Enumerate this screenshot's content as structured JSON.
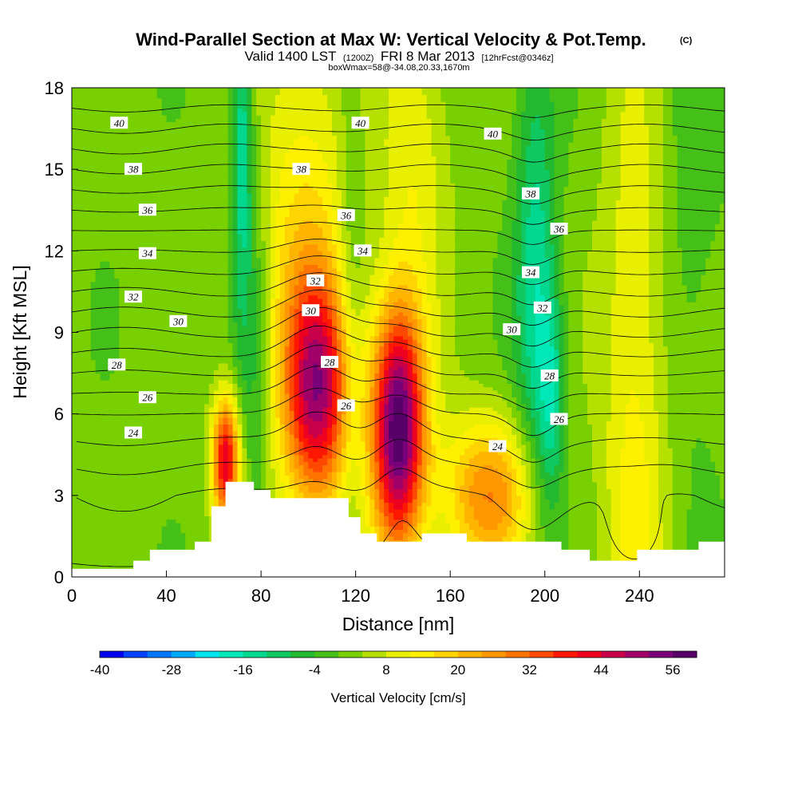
{
  "header": {
    "title": "Wind-Parallel Section at Max W: Vertical Velocity & Pot.Temp.",
    "copyright": "(C)",
    "valid_main": "Valid 1400 LST",
    "valid_utc": "(1200Z)",
    "valid_date": "FRI 8 Mar 2013",
    "forecast": "[12hrFcst@0346z]",
    "box_info": "boxWmax=58@-34.08,20.33,1670m"
  },
  "chart_data": {
    "type": "heatmap",
    "title": "Wind-Parallel Section at Max W: Vertical Velocity & Pot.Temp.",
    "xlabel": "Distance [nm]",
    "ylabel": "Height [Kft MSL]",
    "xlim": [
      0,
      276
    ],
    "ylim": [
      0,
      18
    ],
    "x_ticks": [
      0,
      40,
      80,
      120,
      160,
      200,
      240
    ],
    "y_ticks": [
      0,
      3,
      6,
      9,
      12,
      15,
      18
    ],
    "colorbar": {
      "label": "Vertical Velocity [cm/s]",
      "range": [
        -40,
        60
      ],
      "step": 4,
      "tick_values": [
        -40,
        -28,
        -16,
        -4,
        8,
        20,
        32,
        44,
        56
      ],
      "colors": [
        "#0000ee",
        "#0044ff",
        "#0077ff",
        "#00aaff",
        "#00e5f0",
        "#00e8b8",
        "#00d890",
        "#10c860",
        "#22b830",
        "#45c018",
        "#78d000",
        "#b5e000",
        "#e8f000",
        "#fff000",
        "#ffd400",
        "#ffb400",
        "#ff9800",
        "#ff7400",
        "#ff4800",
        "#ff1800",
        "#ee0020",
        "#c8004a",
        "#a00068",
        "#780078",
        "#580068"
      ]
    },
    "velocity_anomalies": [
      {
        "x": 138,
        "z": 5.5,
        "w": 58,
        "sx": 8,
        "sz": 3.2
      },
      {
        "x": 104,
        "z": 6.8,
        "w": 42,
        "sx": 10,
        "sz": 3.0
      },
      {
        "x": 65,
        "z": 4.3,
        "w": 42,
        "sx": 4,
        "sz": 1.6
      },
      {
        "x": 176,
        "z": 3.0,
        "w": 26,
        "sx": 14,
        "sz": 2.0
      },
      {
        "x": 238,
        "z": 5.5,
        "w": 12,
        "sx": 10,
        "sz": 10
      },
      {
        "x": 98,
        "z": 12.5,
        "w": 14,
        "sx": 14,
        "sz": 6
      },
      {
        "x": 145,
        "z": 15.5,
        "w": 10,
        "sx": 10,
        "sz": 4
      },
      {
        "x": 196,
        "z": 11,
        "w": -16,
        "sx": 6,
        "sz": 6
      },
      {
        "x": 203,
        "z": 6.5,
        "w": -14,
        "sx": 4,
        "sz": 3
      },
      {
        "x": 72,
        "z": 16,
        "w": -18,
        "sx": 3,
        "sz": 5
      },
      {
        "x": 118,
        "z": 10,
        "w": -6,
        "sx": 4,
        "sz": 8
      },
      {
        "x": 78,
        "z": 8,
        "w": -8,
        "sx": 4,
        "sz": 5
      },
      {
        "x": 262,
        "z": 14,
        "w": -4,
        "sx": 10,
        "sz": 8
      }
    ],
    "terrain": [
      [
        0,
        0.3
      ],
      [
        26,
        0.3
      ],
      [
        26,
        0.6
      ],
      [
        33,
        0.6
      ],
      [
        33,
        1.0
      ],
      [
        52,
        1.0
      ],
      [
        52,
        1.3
      ],
      [
        59,
        1.3
      ],
      [
        59,
        2.6
      ],
      [
        65,
        2.6
      ],
      [
        65,
        3.5
      ],
      [
        77,
        3.5
      ],
      [
        77,
        3.2
      ],
      [
        84,
        3.2
      ],
      [
        84,
        2.9
      ],
      [
        117,
        2.9
      ],
      [
        117,
        2.2
      ],
      [
        122,
        2.2
      ],
      [
        122,
        1.6
      ],
      [
        129,
        1.6
      ],
      [
        129,
        1.3
      ],
      [
        148,
        1.3
      ],
      [
        148,
        1.6
      ],
      [
        167,
        1.6
      ],
      [
        167,
        1.3
      ],
      [
        207,
        1.3
      ],
      [
        207,
        1.0
      ],
      [
        219,
        1.0
      ],
      [
        219,
        0.6
      ],
      [
        239,
        0.6
      ],
      [
        239,
        1.0
      ],
      [
        265,
        1.0
      ],
      [
        265,
        1.3
      ],
      [
        277,
        1.3
      ]
    ],
    "theta_contours": {
      "units": "C",
      "levels": [
        21,
        22,
        23,
        24,
        25,
        26,
        27,
        28,
        29,
        30,
        31,
        32,
        33,
        34,
        35,
        36,
        37,
        38,
        39,
        40,
        41
      ],
      "base": [
        [
          0,
          21.8
        ],
        [
          3,
          23.0
        ],
        [
          6,
          26.0
        ],
        [
          9,
          30.0
        ],
        [
          12,
          34.0
        ],
        [
          15,
          38.0
        ],
        [
          18,
          42.0
        ]
      ],
      "perturbations": [
        {
          "x": 104,
          "z": 7.5,
          "amp": -1.2,
          "sx": 12,
          "sz": 4
        },
        {
          "x": 138,
          "z": 5.5,
          "amp": -1.0,
          "sx": 9,
          "sz": 3
        },
        {
          "x": 195,
          "z": 9,
          "amp": 0.9,
          "sx": 8,
          "sz": 5
        },
        {
          "x": 238,
          "z": 1.5,
          "amp": 1.3,
          "sx": 9,
          "sz": 1.2
        }
      ],
      "labels": [
        {
          "text": "40",
          "x": 20,
          "z": 16.7
        },
        {
          "text": "40",
          "x": 122,
          "z": 16.7
        },
        {
          "text": "40",
          "x": 178,
          "z": 16.3
        },
        {
          "text": "38",
          "x": 26,
          "z": 15.0
        },
        {
          "text": "38",
          "x": 97,
          "z": 15.0
        },
        {
          "text": "38",
          "x": 194,
          "z": 14.1
        },
        {
          "text": "36",
          "x": 32,
          "z": 13.5
        },
        {
          "text": "36",
          "x": 116,
          "z": 13.3
        },
        {
          "text": "36",
          "x": 206,
          "z": 12.8
        },
        {
          "text": "34",
          "x": 32,
          "z": 11.9
        },
        {
          "text": "34",
          "x": 123,
          "z": 12.0
        },
        {
          "text": "34",
          "x": 194,
          "z": 11.2
        },
        {
          "text": "32",
          "x": 26,
          "z": 10.3
        },
        {
          "text": "32",
          "x": 103,
          "z": 10.9
        },
        {
          "text": "32",
          "x": 199,
          "z": 9.9
        },
        {
          "text": "30",
          "x": 45,
          "z": 9.4
        },
        {
          "text": "30",
          "x": 101,
          "z": 9.8
        },
        {
          "text": "30",
          "x": 186,
          "z": 9.1
        },
        {
          "text": "28",
          "x": 19,
          "z": 7.8
        },
        {
          "text": "28",
          "x": 109,
          "z": 7.9
        },
        {
          "text": "28",
          "x": 202,
          "z": 7.4
        },
        {
          "text": "26",
          "x": 32,
          "z": 6.6
        },
        {
          "text": "26",
          "x": 116,
          "z": 6.3
        },
        {
          "text": "26",
          "x": 206,
          "z": 5.8
        },
        {
          "text": "24",
          "x": 26,
          "z": 5.3
        },
        {
          "text": "24",
          "x": 180,
          "z": 4.8
        }
      ]
    }
  }
}
